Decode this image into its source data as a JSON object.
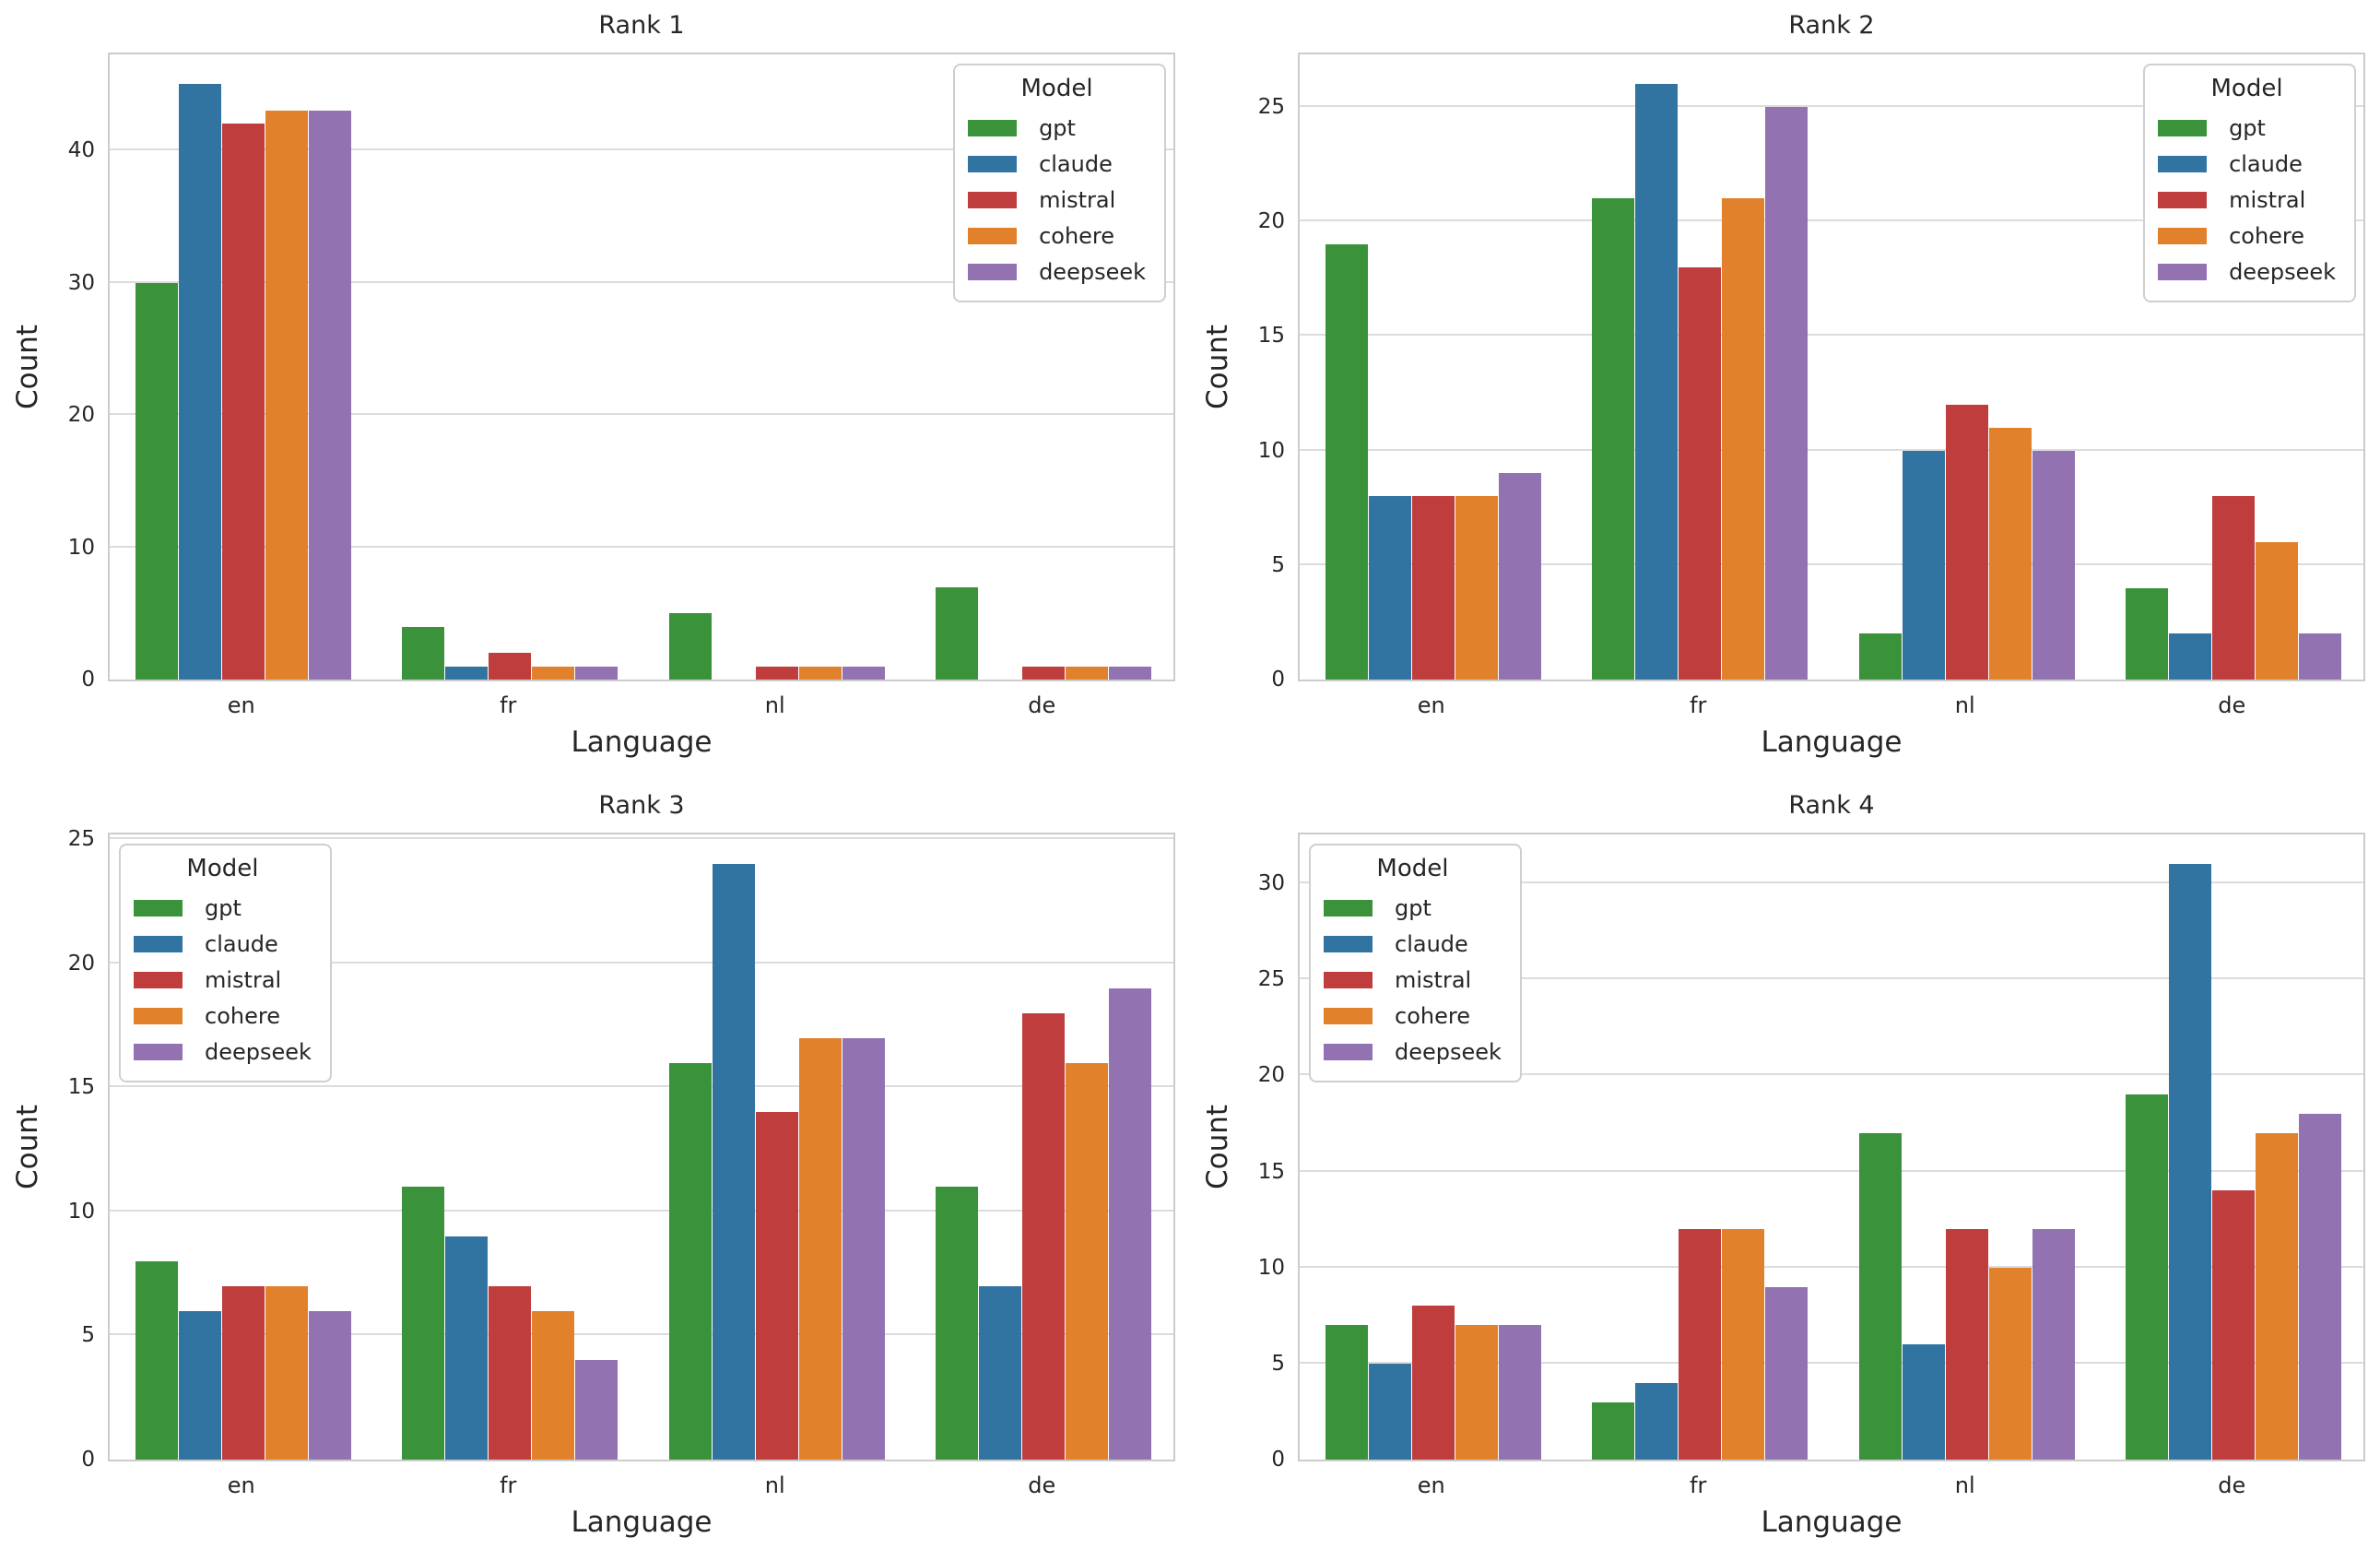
{
  "figure": {
    "background": "#ffffff",
    "text_color": "#262626",
    "grid_color": "#dcdcdc",
    "spine_color": "#cccccc",
    "grid": true
  },
  "legend": {
    "title": "Model",
    "entries": [
      {
        "label": "gpt",
        "color": "#3a923a"
      },
      {
        "label": "claude",
        "color": "#3274a1"
      },
      {
        "label": "mistral",
        "color": "#c03d3e"
      },
      {
        "label": "cohere",
        "color": "#e1812c"
      },
      {
        "label": "deepseek",
        "color": "#9372b2"
      }
    ]
  },
  "chart_data": [
    {
      "type": "bar",
      "title": "Rank 1",
      "xlabel": "Language",
      "ylabel": "Count",
      "categories": [
        "en",
        "fr",
        "nl",
        "de"
      ],
      "series": [
        {
          "name": "gpt",
          "values": [
            30,
            4,
            5,
            7
          ]
        },
        {
          "name": "claude",
          "values": [
            45,
            1,
            0,
            0
          ]
        },
        {
          "name": "mistral",
          "values": [
            42,
            2,
            1,
            1
          ]
        },
        {
          "name": "cohere",
          "values": [
            43,
            1,
            1,
            1
          ]
        },
        {
          "name": "deepseek",
          "values": [
            43,
            1,
            1,
            1
          ]
        }
      ],
      "yticks": [
        0,
        10,
        20,
        30,
        40
      ],
      "ylim": [
        0,
        47.25
      ],
      "legend_position": "upper right",
      "grid": true
    },
    {
      "type": "bar",
      "title": "Rank 2",
      "xlabel": "Language",
      "ylabel": "Count",
      "categories": [
        "en",
        "fr",
        "nl",
        "de"
      ],
      "series": [
        {
          "name": "gpt",
          "values": [
            19,
            21,
            2,
            4
          ]
        },
        {
          "name": "claude",
          "values": [
            8,
            26,
            10,
            2
          ]
        },
        {
          "name": "mistral",
          "values": [
            8,
            18,
            12,
            8
          ]
        },
        {
          "name": "cohere",
          "values": [
            8,
            21,
            11,
            6
          ]
        },
        {
          "name": "deepseek",
          "values": [
            9,
            25,
            10,
            2
          ]
        }
      ],
      "yticks": [
        0,
        5,
        10,
        15,
        20,
        25
      ],
      "ylim": [
        0,
        27.3
      ],
      "legend_position": "upper right",
      "grid": true
    },
    {
      "type": "bar",
      "title": "Rank 3",
      "xlabel": "Language",
      "ylabel": "Count",
      "categories": [
        "en",
        "fr",
        "nl",
        "de"
      ],
      "series": [
        {
          "name": "gpt",
          "values": [
            8,
            11,
            16,
            11
          ]
        },
        {
          "name": "claude",
          "values": [
            6,
            9,
            24,
            7
          ]
        },
        {
          "name": "mistral",
          "values": [
            7,
            7,
            14,
            18
          ]
        },
        {
          "name": "cohere",
          "values": [
            7,
            6,
            17,
            16
          ]
        },
        {
          "name": "deepseek",
          "values": [
            6,
            4,
            17,
            19
          ]
        }
      ],
      "yticks": [
        0,
        5,
        10,
        15,
        20,
        25
      ],
      "ylim": [
        0,
        25.2
      ],
      "legend_position": "upper left",
      "grid": true
    },
    {
      "type": "bar",
      "title": "Rank 4",
      "xlabel": "Language",
      "ylabel": "Count",
      "categories": [
        "en",
        "fr",
        "nl",
        "de"
      ],
      "series": [
        {
          "name": "gpt",
          "values": [
            7,
            3,
            17,
            19
          ]
        },
        {
          "name": "claude",
          "values": [
            5,
            4,
            6,
            31
          ]
        },
        {
          "name": "mistral",
          "values": [
            8,
            12,
            12,
            14
          ]
        },
        {
          "name": "cohere",
          "values": [
            7,
            12,
            10,
            17
          ]
        },
        {
          "name": "deepseek",
          "values": [
            7,
            9,
            12,
            18
          ]
        }
      ],
      "yticks": [
        0,
        5,
        10,
        15,
        20,
        25,
        30
      ],
      "ylim": [
        0,
        32.55
      ],
      "legend_position": "upper left",
      "grid": true
    }
  ]
}
